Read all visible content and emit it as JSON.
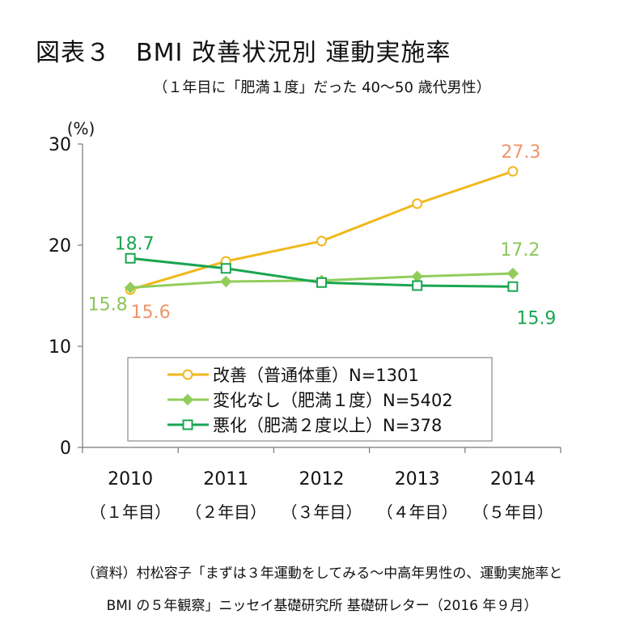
{
  "header": {
    "title": "図表３　BMI 改善状況別 運動実施率",
    "subtitle": "（１年目に「肥満１度」だった 40～50 歳代男性）"
  },
  "chart_data": {
    "type": "line",
    "ylabel": "(%)",
    "ylim": [
      0,
      30
    ],
    "yticks": [
      "0",
      "10",
      "20",
      "30"
    ],
    "grid": false,
    "legend_position": "bottom-center",
    "categories": [
      "2010",
      "2011",
      "2012",
      "2013",
      "2014"
    ],
    "category_sublabels": [
      "（１年目）",
      "（２年目）",
      "（３年目）",
      "（４年目）",
      "（５年目）"
    ],
    "series": [
      {
        "name": "改善（普通体重）N=1301",
        "color": "#f0b81c",
        "marker": "circle-open",
        "values": [
          15.6,
          18.4,
          20.4,
          24.1,
          27.3
        ],
        "labels": [
          "15.6",
          "",
          "",
          "",
          "27.3"
        ],
        "label_color": "#f0956a"
      },
      {
        "name": "変化なし（肥満１度）N=5402",
        "color": "#92cd5c",
        "marker": "diamond",
        "values": [
          15.8,
          16.4,
          16.5,
          16.9,
          17.2
        ],
        "labels": [
          "15.8",
          "",
          "",
          "",
          "17.2"
        ],
        "label_color": "#8cc65a"
      },
      {
        "name": "悪化（肥満２度以上）N=378",
        "color": "#1aa650",
        "marker": "square-open",
        "values": [
          18.7,
          17.7,
          16.3,
          16.0,
          15.9
        ],
        "labels": [
          "18.7",
          "",
          "",
          "",
          "15.9"
        ],
        "label_color": "#1aa650"
      }
    ]
  },
  "source": {
    "line1": "（資料）村松容子「まずは３年運動をしてみる～中高年男性の、運動実施率と",
    "line2": "BMI の５年観察」ニッセイ基礎研究所 基礎研レター（2016 年９月）"
  }
}
